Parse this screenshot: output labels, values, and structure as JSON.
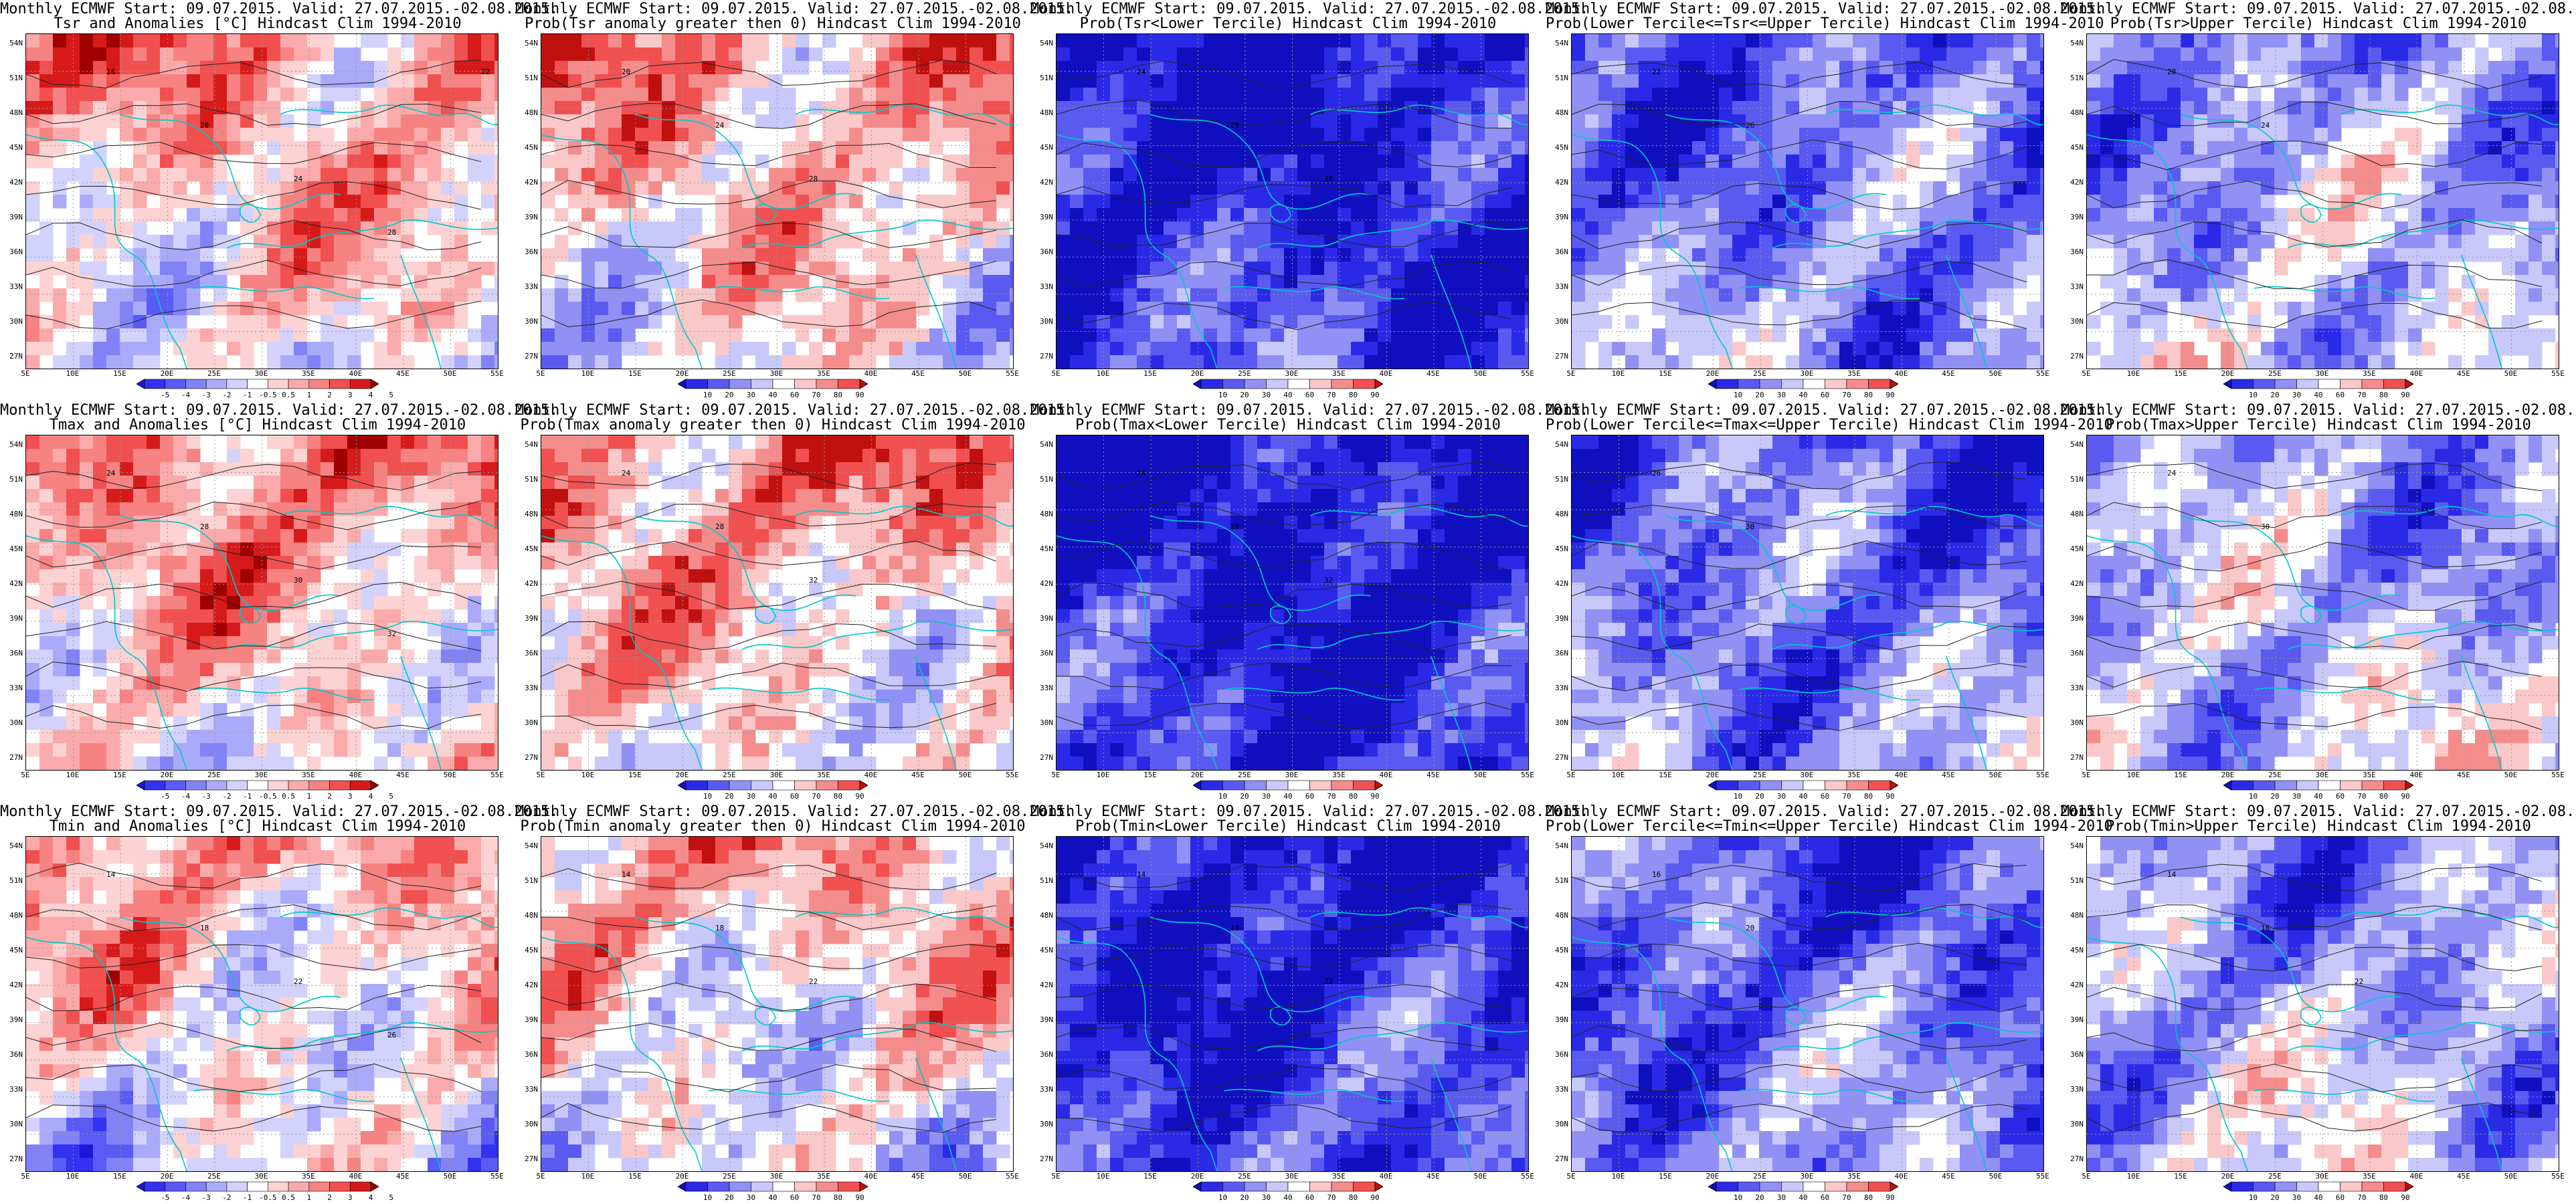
{
  "lat_labels": [
    "54N",
    "51N",
    "48N",
    "45N",
    "42N",
    "39N",
    "36N",
    "33N",
    "30N",
    "27N"
  ],
  "lon_labels": [
    "5E",
    "10E",
    "15E",
    "20E",
    "25E",
    "30E",
    "35E",
    "40E",
    "45E",
    "50E",
    "55E"
  ],
  "title_line1": "Monthly ECMWF Start: 09.07.2015. Valid: 27.07.2015.-02.08.2015.",
  "colorbars": {
    "anomaly": {
      "labels": [
        "-5",
        "-4",
        "-3",
        "-2",
        "-1",
        "-0.5",
        "0.5",
        "1",
        "2",
        "3",
        "4",
        "5"
      ],
      "colors": [
        "#1a1ad6",
        "#3232f0",
        "#5a5af5",
        "#8282f7",
        "#aaaafa",
        "#d2d2fc",
        "#ffffff",
        "#fcd2d2",
        "#faaaaa",
        "#f78282",
        "#f05050",
        "#d61a1a",
        "#a00000"
      ]
    },
    "prob": {
      "labels": [
        "10",
        "20",
        "30",
        "40",
        "60",
        "70",
        "80",
        "90"
      ],
      "colors": [
        "#1010c0",
        "#2a2ae6",
        "#5a5af0",
        "#9090f5",
        "#c8c8fa",
        "#ffffff",
        "#fac8c8",
        "#f58c8c",
        "#f05050",
        "#c01010"
      ]
    }
  },
  "panels": [
    {
      "id": "r1c1",
      "title2": "Tsr and Anomalies [°C] Hindcast Clim 1994-2010",
      "cbar": "anomaly",
      "bias": 0.6,
      "contours": [
        "16",
        "20",
        "24",
        "28",
        "22"
      ]
    },
    {
      "id": "r1c2",
      "title2": "Prob(Tsr anomaly greater then 0) Hindcast Clim 1994-2010",
      "cbar": "prob",
      "bias": 0.65,
      "contours": [
        "20",
        "24",
        "28"
      ]
    },
    {
      "id": "r1c3",
      "title2": "Prob(Tsr<Lower Tercile) Hindcast Clim 1994-2010",
      "cbar": "prob",
      "bias": 0.12,
      "contours": [
        "24",
        "28",
        "30"
      ]
    },
    {
      "id": "r1c4",
      "title2": "Prob(Lower Tercile<=Tsr<=Upper Tercile) Hindcast Clim 1994-2010",
      "cbar": "prob",
      "bias": 0.3,
      "contours": [
        "22",
        "26"
      ]
    },
    {
      "id": "r1c5",
      "title2": "Prob(Tsr>Upper Tercile) Hindcast Clim 1994-2010",
      "cbar": "prob",
      "bias": 0.4,
      "contours": [
        "20",
        "24"
      ]
    },
    {
      "id": "r2c1",
      "title2": "Tmax and Anomalies [°C] Hindcast Clim 1994-2010",
      "cbar": "anomaly",
      "bias": 0.62,
      "contours": [
        "24",
        "28",
        "30",
        "32"
      ]
    },
    {
      "id": "r2c2",
      "title2": "Prob(Tmax anomaly greater then 0) Hindcast Clim 1994-2010",
      "cbar": "prob",
      "bias": 0.66,
      "contours": [
        "24",
        "28",
        "32"
      ]
    },
    {
      "id": "r2c3",
      "title2": "Prob(Tmax<Lower Tercile) Hindcast Clim 1994-2010",
      "cbar": "prob",
      "bias": 0.1,
      "contours": [
        "24",
        "28",
        "32"
      ]
    },
    {
      "id": "r2c4",
      "title2": "Prob(Lower Tercile<=Tmax<=Upper Tercile) Hindcast Clim 1994-2010",
      "cbar": "prob",
      "bias": 0.3,
      "contours": [
        "26",
        "30"
      ]
    },
    {
      "id": "r2c5",
      "title2": "Prob(Tmax>Upper Tercile) Hindcast Clim 1994-2010",
      "cbar": "prob",
      "bias": 0.42,
      "contours": [
        "24",
        "30"
      ]
    },
    {
      "id": "r3c1",
      "title2": "Tmin and Anomalies [°C] Hindcast Clim 1994-2010",
      "cbar": "anomaly",
      "bias": 0.55,
      "contours": [
        "14",
        "18",
        "22",
        "26"
      ]
    },
    {
      "id": "r3c2",
      "title2": "Prob(Tmin anomaly greater then 0) Hindcast Clim 1994-2010",
      "cbar": "prob",
      "bias": 0.6,
      "contours": [
        "14",
        "18",
        "22"
      ]
    },
    {
      "id": "r3c3",
      "title2": "Prob(Tmin<Lower Tercile) Hindcast Clim 1994-2010",
      "cbar": "prob",
      "bias": 0.15,
      "contours": [
        "14",
        "18",
        "22"
      ]
    },
    {
      "id": "r3c4",
      "title2": "Prob(Lower Tercile<=Tmin<=Upper Tercile) Hindcast Clim 1994-2010",
      "cbar": "prob",
      "bias": 0.28,
      "contours": [
        "16",
        "20"
      ]
    },
    {
      "id": "r3c5",
      "title2": "Prob(Tmin>Upper Tercile) Hindcast Clim 1994-2010",
      "cbar": "prob",
      "bias": 0.4,
      "contours": [
        "14",
        "18",
        "22"
      ]
    }
  ]
}
